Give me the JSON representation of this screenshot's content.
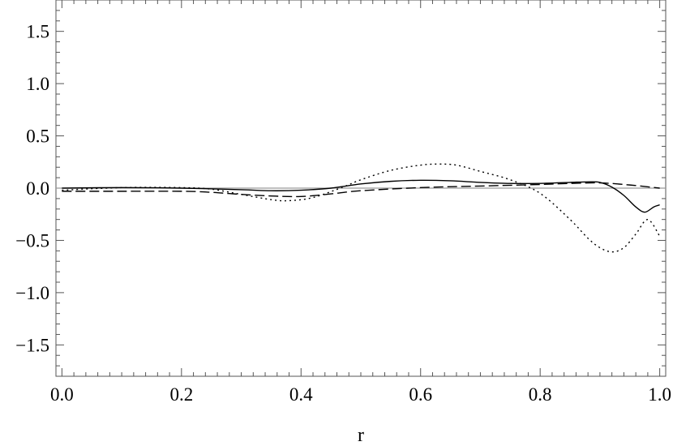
{
  "chart_data": {
    "type": "line",
    "title": "",
    "xlabel": "r",
    "ylabel": "",
    "xlim": [
      -0.01,
      1.01
    ],
    "ylim": [
      -1.8,
      1.8
    ],
    "xticks": [
      {
        "value": 0.0,
        "label": "0.0"
      },
      {
        "value": 0.2,
        "label": "0.2"
      },
      {
        "value": 0.4,
        "label": "0.4"
      },
      {
        "value": 0.6,
        "label": "0.6"
      },
      {
        "value": 0.8,
        "label": "0.8"
      },
      {
        "value": 1.0,
        "label": "1.0"
      }
    ],
    "yticks": [
      {
        "value": 1.5,
        "label": "1.5"
      },
      {
        "value": 1.0,
        "label": "1.0"
      },
      {
        "value": 0.5,
        "label": "0.5"
      },
      {
        "value": 0.0,
        "label": "0.0"
      },
      {
        "value": -0.5,
        "label": "−0.5"
      },
      {
        "value": -1.0,
        "label": "−1.0"
      },
      {
        "value": -1.5,
        "label": "−1.5"
      }
    ],
    "zero_line": true,
    "grid": false,
    "series": [
      {
        "style": "solid",
        "x": [
          0.0,
          0.1,
          0.2,
          0.3,
          0.35,
          0.4,
          0.45,
          0.5,
          0.55,
          0.6,
          0.65,
          0.7,
          0.75,
          0.8,
          0.85,
          0.88,
          0.9,
          0.92,
          0.94,
          0.96,
          0.975,
          0.99,
          1.0
        ],
        "y": [
          0.0,
          0.005,
          0.0,
          -0.015,
          -0.025,
          -0.02,
          0.0,
          0.04,
          0.065,
          0.075,
          0.07,
          0.055,
          0.045,
          0.045,
          0.055,
          0.06,
          0.055,
          0.01,
          -0.07,
          -0.18,
          -0.23,
          -0.18,
          -0.16
        ]
      },
      {
        "style": "dashed",
        "x": [
          0.0,
          0.1,
          0.2,
          0.25,
          0.3,
          0.35,
          0.4,
          0.45,
          0.5,
          0.6,
          0.7,
          0.8,
          0.85,
          0.9,
          0.95,
          1.0
        ],
        "y": [
          -0.03,
          -0.03,
          -0.03,
          -0.04,
          -0.06,
          -0.075,
          -0.08,
          -0.055,
          -0.025,
          0.005,
          0.02,
          0.035,
          0.045,
          0.05,
          0.03,
          0.0
        ]
      },
      {
        "style": "dotted",
        "x": [
          0.0,
          0.1,
          0.2,
          0.25,
          0.3,
          0.35,
          0.38,
          0.42,
          0.47,
          0.5,
          0.55,
          0.6,
          0.63,
          0.66,
          0.7,
          0.75,
          0.8,
          0.85,
          0.88,
          0.9,
          0.92,
          0.94,
          0.96,
          0.98,
          1.0
        ],
        "y": [
          -0.02,
          0.005,
          0.005,
          -0.01,
          -0.06,
          -0.11,
          -0.12,
          -0.09,
          0.01,
          0.08,
          0.17,
          0.22,
          0.23,
          0.22,
          0.16,
          0.08,
          -0.05,
          -0.3,
          -0.48,
          -0.57,
          -0.61,
          -0.57,
          -0.44,
          -0.3,
          -0.46
        ]
      }
    ]
  }
}
